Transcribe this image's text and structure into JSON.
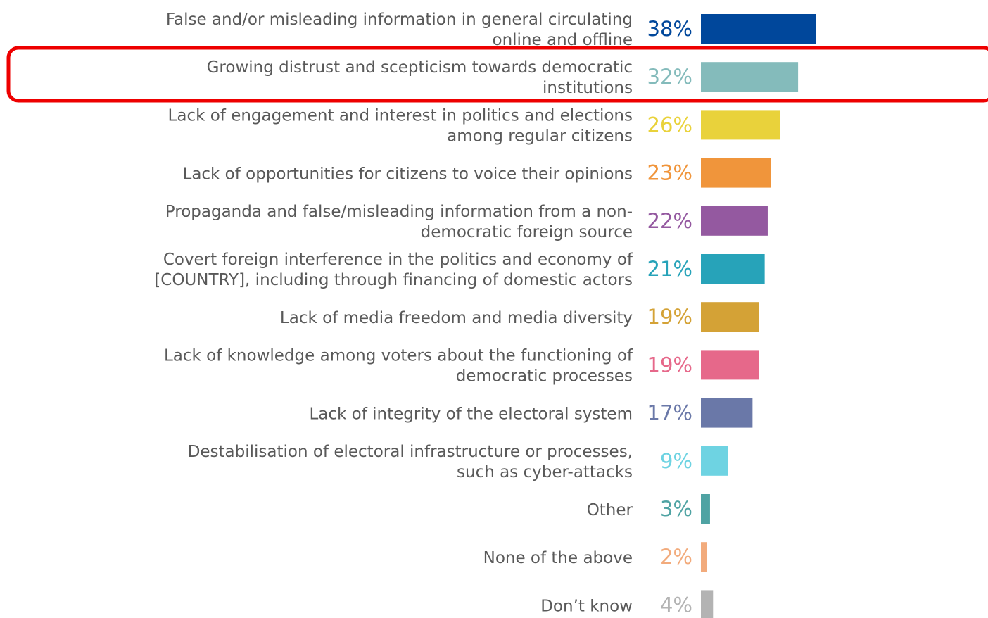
{
  "chart_data": {
    "type": "bar",
    "orientation": "horizontal",
    "categories": [
      [
        "False and/or misleading information in general circulating",
        "online and offline"
      ],
      [
        "Growing distrust and scepticism towards democratic",
        "institutions"
      ],
      [
        "Lack of engagement and interest in politics and elections",
        "among regular citizens"
      ],
      [
        "Lack of opportunities for citizens to voice their opinions"
      ],
      [
        "Propaganda and false/misleading information from a non-",
        "democratic foreign source"
      ],
      [
        "Covert foreign interference in the politics and economy of",
        "[COUNTRY], including through financing of domestic actors"
      ],
      [
        "Lack of media freedom and media diversity"
      ],
      [
        "Lack of knowledge among voters about the functioning of",
        "democratic processes"
      ],
      [
        "Lack of integrity of the electoral system"
      ],
      [
        "Destabilisation of electoral infrastructure or processes,",
        "such as cyber-attacks"
      ],
      [
        "Other"
      ],
      [
        "None of the above"
      ],
      [
        "Don’t know"
      ]
    ],
    "values": [
      38,
      32,
      26,
      23,
      22,
      21,
      19,
      19,
      17,
      9,
      3,
      2,
      4
    ],
    "value_labels": [
      "38%",
      "32%",
      "26%",
      "23%",
      "22%",
      "21%",
      "19%",
      "19%",
      "17%",
      "9%",
      "3%",
      "2%",
      "4%"
    ],
    "colors": [
      "#00479b",
      "#84bbbb",
      "#e9d23b",
      "#f0953b",
      "#9459a0",
      "#27a3b9",
      "#d4a236",
      "#e6688a",
      "#6a78a8",
      "#6ed3e2",
      "#4fa3a3",
      "#f2ab7c",
      "#b3b3b3"
    ],
    "highlight_index": 1,
    "highlight_color": "#ee0000",
    "xlim": [
      0,
      40
    ]
  }
}
